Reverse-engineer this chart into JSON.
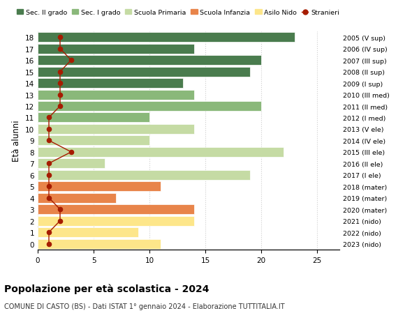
{
  "ages": [
    0,
    1,
    2,
    3,
    4,
    5,
    6,
    7,
    8,
    9,
    10,
    11,
    12,
    13,
    14,
    15,
    16,
    17,
    18
  ],
  "years": [
    "2023 (nido)",
    "2022 (nido)",
    "2021 (nido)",
    "2020 (mater)",
    "2019 (mater)",
    "2018 (mater)",
    "2017 (I ele)",
    "2016 (II ele)",
    "2015 (III ele)",
    "2014 (IV ele)",
    "2013 (V ele)",
    "2012 (I med)",
    "2011 (II med)",
    "2010 (III med)",
    "2009 (I sup)",
    "2008 (II sup)",
    "2007 (III sup)",
    "2006 (IV sup)",
    "2005 (V sup)"
  ],
  "bar_values": [
    11,
    9,
    14,
    14,
    7,
    11,
    19,
    6,
    22,
    10,
    14,
    10,
    20,
    14,
    13,
    19,
    20,
    14,
    23
  ],
  "bar_colors": [
    "#fde68a",
    "#fde68a",
    "#fde68a",
    "#e8844a",
    "#e8844a",
    "#e8844a",
    "#c5dba4",
    "#c5dba4",
    "#c5dba4",
    "#c5dba4",
    "#c5dba4",
    "#8ab87a",
    "#8ab87a",
    "#8ab87a",
    "#4a7c4e",
    "#4a7c4e",
    "#4a7c4e",
    "#4a7c4e",
    "#4a7c4e"
  ],
  "stranieri": [
    1,
    1,
    2,
    2,
    1,
    1,
    1,
    1,
    3,
    1,
    1,
    1,
    2,
    2,
    2,
    2,
    3,
    2,
    2
  ],
  "stranieri_color": "#a61c00",
  "legend_labels": [
    "Sec. II grado",
    "Sec. I grado",
    "Scuola Primaria",
    "Scuola Infanzia",
    "Asilo Nido",
    "Stranieri"
  ],
  "legend_colors": [
    "#4a7c4e",
    "#8ab87a",
    "#c5dba4",
    "#e8844a",
    "#fde68a",
    "#a61c00"
  ],
  "ylabel_left": "Età alunni",
  "title": "Popolazione per età scolastica - 2024",
  "subtitle": "COMUNE DI CASTO (BS) - Dati ISTAT 1° gennaio 2024 - Elaborazione TUTTITALIA.IT",
  "xlim": [
    0,
    27
  ],
  "xticks": [
    0,
    5,
    10,
    15,
    20,
    25
  ],
  "grid_color": "#cccccc"
}
